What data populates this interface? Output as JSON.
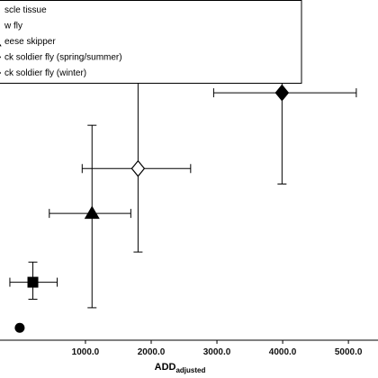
{
  "chart_data": {
    "type": "scatter",
    "xlabel_main": "ADD",
    "xlabel_sub": "adjusted",
    "ylabel": "",
    "xlim": [
      -300,
      5450
    ],
    "ylim": [
      -50,
      2150
    ],
    "xticks": [
      {
        "value": 1000,
        "label": "1000.0"
      },
      {
        "value": 2000,
        "label": "2000.0"
      },
      {
        "value": 3000,
        "label": "3000.0"
      },
      {
        "value": 4000,
        "label": "4000.0"
      },
      {
        "value": 5000,
        "label": "5000.0"
      }
    ],
    "legend_position": "top-left",
    "legend": [
      {
        "label": "scle tissue",
        "marker": "circle"
      },
      {
        "label": "w fly",
        "marker": "square"
      },
      {
        "label": "eese skipper",
        "marker": "triangle"
      },
      {
        "label": "ck soldier fly (spring/summer)",
        "marker": "diamond-open"
      },
      {
        "label": "ck soldier fly (winter)",
        "marker": "diamond"
      }
    ],
    "series": [
      {
        "marker": "circle",
        "x": 0,
        "y": 30,
        "xerr": [
          0,
          0
        ],
        "yerr": [
          0,
          0
        ]
      },
      {
        "marker": "square",
        "x": 200,
        "y": 325,
        "xerr": [
          350,
          370
        ],
        "yerr": [
          110,
          130
        ]
      },
      {
        "marker": "triangle",
        "x": 1100,
        "y": 770,
        "xerr": [
          650,
          590
        ],
        "yerr": [
          610,
          570
        ]
      },
      {
        "marker": "diamond-open",
        "x": 1800,
        "y": 1060,
        "xerr": [
          850,
          800
        ],
        "yerr": [
          540,
          590
        ]
      },
      {
        "marker": "diamond",
        "x": 3990,
        "y": 1550,
        "xerr": [
          1040,
          1130
        ],
        "yerr": [
          590,
          640
        ]
      }
    ]
  }
}
